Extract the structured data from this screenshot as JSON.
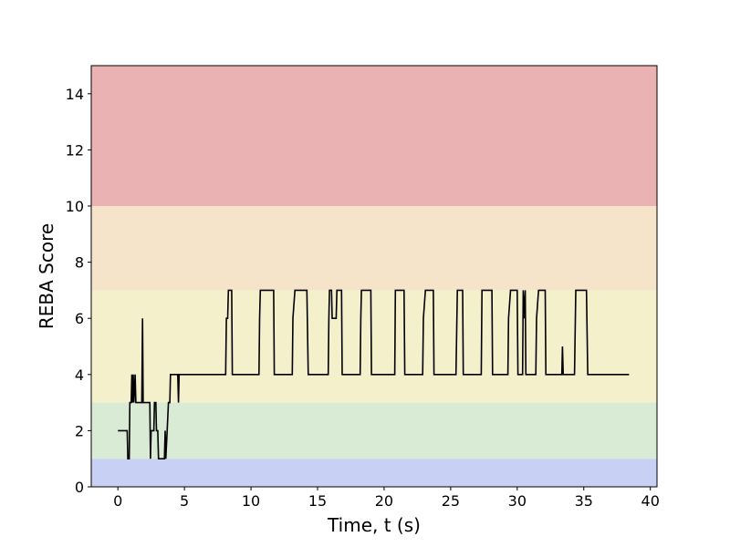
{
  "chart_data": {
    "type": "line",
    "title": "",
    "xlabel": "Time, t (s)",
    "ylabel": "REBA Score",
    "xlim": [
      -2,
      40.5
    ],
    "ylim": [
      0,
      15
    ],
    "xticks": [
      0,
      5,
      10,
      15,
      20,
      25,
      30,
      35,
      40
    ],
    "yticks": [
      0,
      2,
      4,
      6,
      8,
      10,
      12,
      14
    ],
    "grid": false,
    "bands": [
      {
        "from": 0,
        "to": 1,
        "color": "#c8d0f4"
      },
      {
        "from": 1,
        "to": 3,
        "color": "#d9ead5"
      },
      {
        "from": 3,
        "to": 7,
        "color": "#f4f0cb"
      },
      {
        "from": 7,
        "to": 10,
        "color": "#f5e4c9"
      },
      {
        "from": 10,
        "to": 15,
        "color": "#eab2b2"
      }
    ],
    "series": [
      {
        "color": "#000000",
        "points": [
          [
            0,
            2
          ],
          [
            0.7,
            2
          ],
          [
            0.75,
            1
          ],
          [
            0.85,
            1
          ],
          [
            0.9,
            3
          ],
          [
            1.0,
            3
          ],
          [
            1.05,
            4
          ],
          [
            1.1,
            3
          ],
          [
            1.15,
            4
          ],
          [
            1.2,
            3
          ],
          [
            1.3,
            4
          ],
          [
            1.35,
            3
          ],
          [
            1.8,
            3
          ],
          [
            1.85,
            6
          ],
          [
            1.9,
            3
          ],
          [
            2.4,
            3
          ],
          [
            2.45,
            1
          ],
          [
            2.5,
            2
          ],
          [
            2.7,
            2
          ],
          [
            2.75,
            3
          ],
          [
            2.85,
            3
          ],
          [
            2.9,
            2
          ],
          [
            3.0,
            2
          ],
          [
            3.05,
            1
          ],
          [
            3.5,
            1
          ],
          [
            3.55,
            2
          ],
          [
            3.6,
            1
          ],
          [
            3.7,
            2
          ],
          [
            3.8,
            3
          ],
          [
            3.9,
            3
          ],
          [
            3.95,
            4
          ],
          [
            4.5,
            4
          ],
          [
            4.55,
            3
          ],
          [
            4.6,
            4
          ],
          [
            8.1,
            4
          ],
          [
            8.15,
            6
          ],
          [
            8.25,
            6
          ],
          [
            8.3,
            7
          ],
          [
            8.55,
            7
          ],
          [
            8.6,
            4
          ],
          [
            10.6,
            4
          ],
          [
            10.65,
            6
          ],
          [
            10.7,
            7
          ],
          [
            11.7,
            7
          ],
          [
            11.75,
            4
          ],
          [
            13.1,
            4
          ],
          [
            13.15,
            6
          ],
          [
            13.3,
            7
          ],
          [
            14.2,
            7
          ],
          [
            14.3,
            4
          ],
          [
            15.8,
            4
          ],
          [
            15.85,
            6
          ],
          [
            15.9,
            7
          ],
          [
            16.05,
            7
          ],
          [
            16.1,
            6
          ],
          [
            16.4,
            6
          ],
          [
            16.45,
            7
          ],
          [
            16.8,
            7
          ],
          [
            16.85,
            4
          ],
          [
            18.2,
            4
          ],
          [
            18.25,
            6
          ],
          [
            18.3,
            7
          ],
          [
            19.0,
            7
          ],
          [
            19.05,
            4
          ],
          [
            20.8,
            4
          ],
          [
            20.85,
            7
          ],
          [
            21.5,
            7
          ],
          [
            21.55,
            4
          ],
          [
            22.9,
            4
          ],
          [
            22.95,
            6
          ],
          [
            23.1,
            7
          ],
          [
            23.7,
            7
          ],
          [
            23.75,
            4
          ],
          [
            25.4,
            4
          ],
          [
            25.5,
            7
          ],
          [
            25.9,
            7
          ],
          [
            25.95,
            4
          ],
          [
            27.3,
            4
          ],
          [
            27.35,
            7
          ],
          [
            28.1,
            7
          ],
          [
            28.15,
            4
          ],
          [
            29.3,
            4
          ],
          [
            29.35,
            6
          ],
          [
            29.5,
            7
          ],
          [
            30.0,
            7
          ],
          [
            30.05,
            4
          ],
          [
            30.4,
            4
          ],
          [
            30.45,
            7
          ],
          [
            30.55,
            6
          ],
          [
            30.6,
            7
          ],
          [
            30.65,
            4
          ],
          [
            31.4,
            4
          ],
          [
            31.45,
            6
          ],
          [
            31.6,
            7
          ],
          [
            32.1,
            7
          ],
          [
            32.15,
            4
          ],
          [
            33.35,
            4
          ],
          [
            33.4,
            5
          ],
          [
            33.45,
            4
          ],
          [
            34.3,
            4
          ],
          [
            34.4,
            7
          ],
          [
            35.2,
            7
          ],
          [
            35.3,
            4
          ],
          [
            38.4,
            4
          ]
        ]
      }
    ]
  }
}
